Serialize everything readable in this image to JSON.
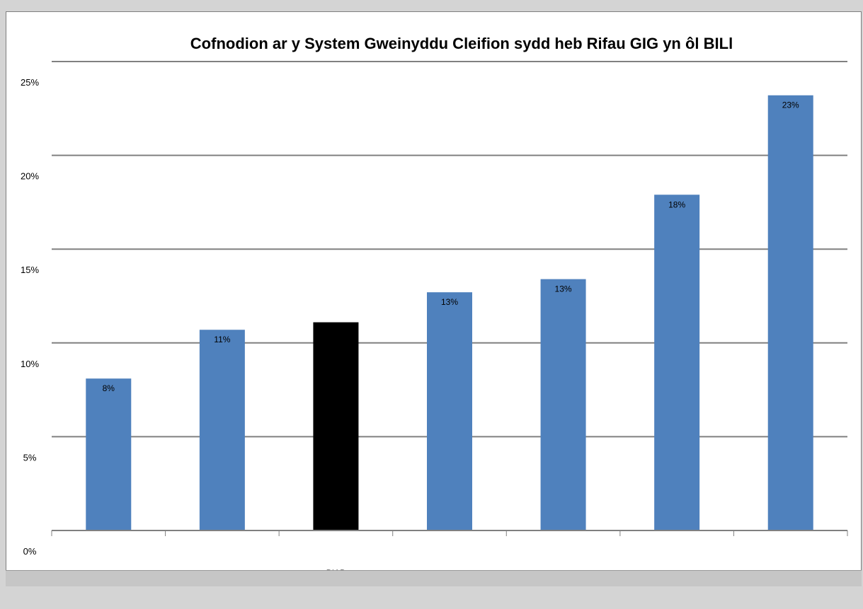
{
  "chart_data": {
    "type": "bar",
    "title": "Cofnodion ar y System Gweinyddu Cleifion sydd heb Rifau GIG yn ôl BILl",
    "xlabel": "",
    "ylabel": "",
    "categories": [
      "",
      "",
      "BIAB",
      "",
      "",
      "",
      ""
    ],
    "values": [
      8.1,
      10.7,
      11.1,
      12.7,
      13.4,
      17.9,
      23.2
    ],
    "data_labels": [
      "8%",
      "11%",
      "",
      "13%",
      "13%",
      "18%",
      "23%"
    ],
    "bar_colors": [
      "#4f81bd",
      "#4f81bd",
      "#000000",
      "#4f81bd",
      "#4f81bd",
      "#4f81bd",
      "#4f81bd"
    ],
    "ylim": [
      0,
      25
    ],
    "yticks": [
      0,
      5,
      10,
      15,
      20,
      25
    ],
    "ytick_labels": [
      "0%",
      "5%",
      "10%",
      "15%",
      "20%",
      "25%"
    ],
    "grid": true,
    "legend": "none"
  },
  "colors": {
    "default_bar": "#4f81bd",
    "highlight_bar": "#000000",
    "gridline": "#808080"
  }
}
